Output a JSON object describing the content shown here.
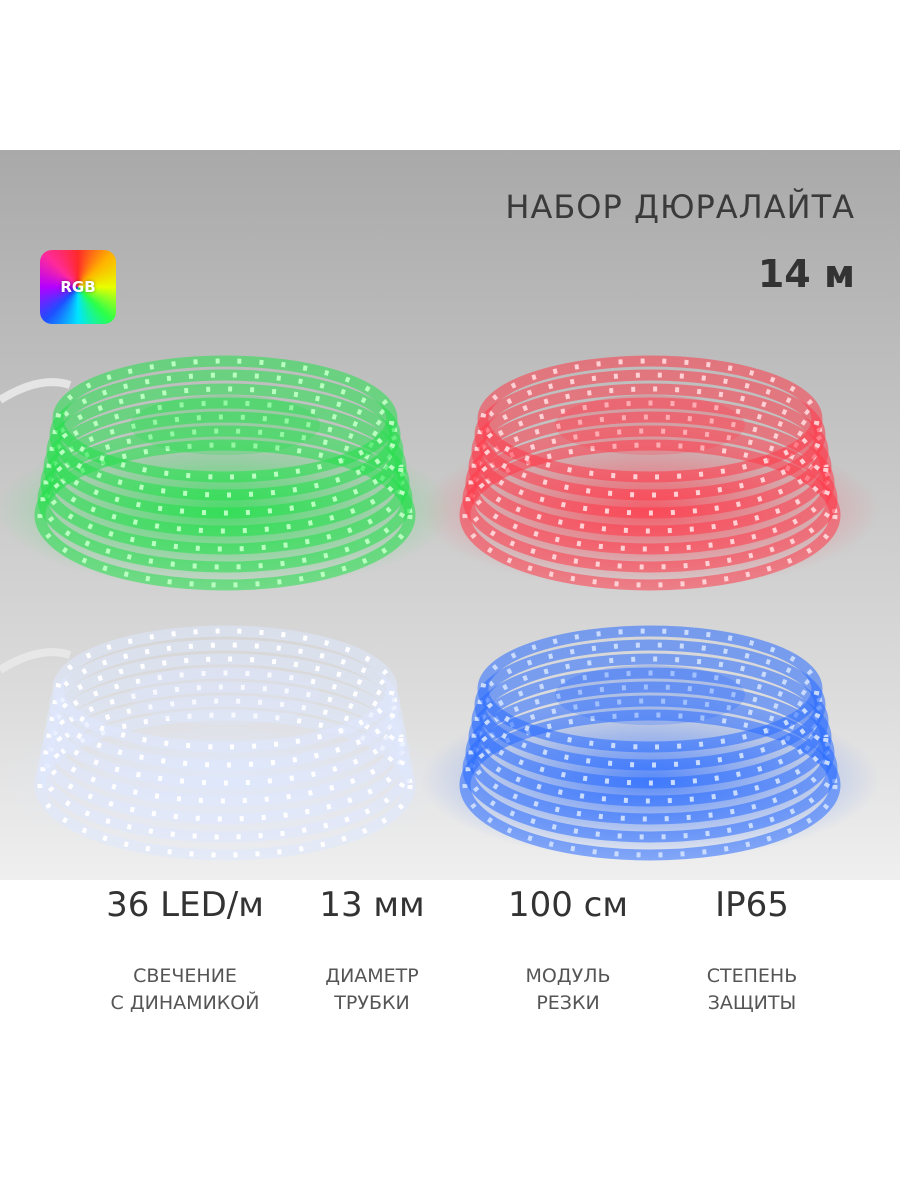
{
  "header": {
    "title": "НАБОР ДЮРАЛАЙТА",
    "subtitle": "14 м",
    "badge": "RGB"
  },
  "specs": [
    {
      "value": "36 LED/м",
      "label": [
        "СВЕЧЕНИЕ",
        "С ДИНАМИКОЙ"
      ]
    },
    {
      "value": "13 мм",
      "label": [
        "ДИАМЕТР",
        "ТРУБКИ"
      ]
    },
    {
      "value": "100 см",
      "label": [
        "МОДУЛЬ",
        "РЕЗКИ"
      ]
    },
    {
      "value": "IP65",
      "label": [
        "СТЕПЕНЬ",
        "ЗАЩИТЫ"
      ]
    }
  ]
}
